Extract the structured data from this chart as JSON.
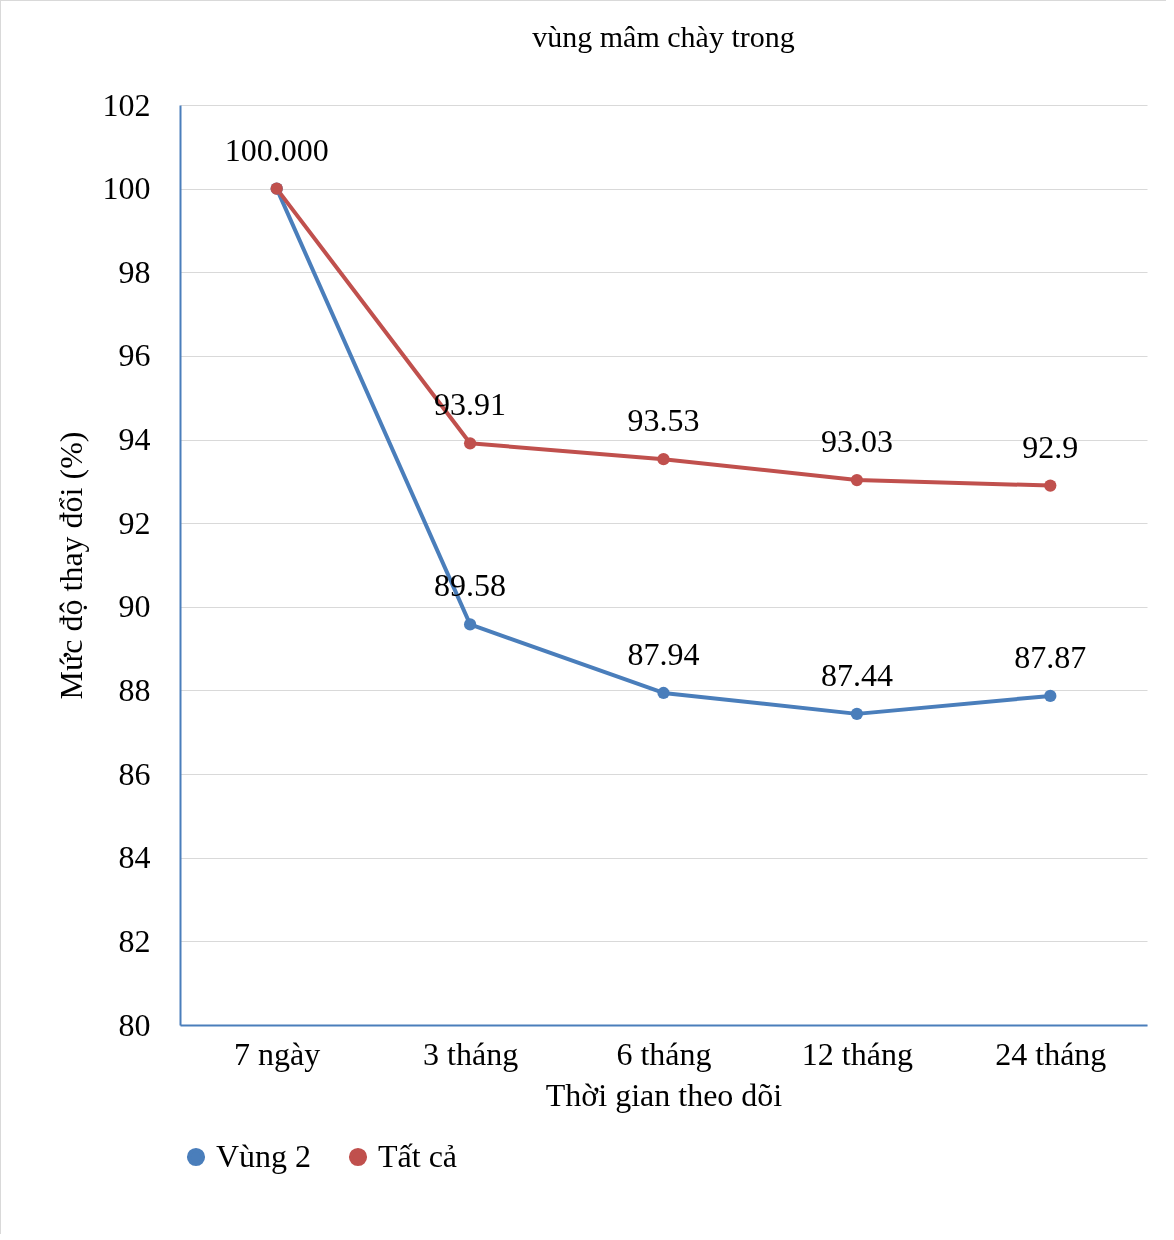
{
  "chart_data": {
    "type": "line",
    "title": "vùng mâm chày trong",
    "xlabel": "Thời gian theo dõi",
    "ylabel": "Mức độ thay đổi (%)",
    "categories": [
      "7 ngày",
      "3 tháng",
      "6 tháng",
      "12 tháng",
      "24 tháng"
    ],
    "series": [
      {
        "name": "Vùng 2",
        "color": "#4a7ebb",
        "values": [
          100,
          89.58,
          87.94,
          87.44,
          87.87
        ],
        "value_labels": [
          null,
          "89.58",
          "87.94",
          "87.44",
          "87.87"
        ]
      },
      {
        "name": "Tất cả",
        "color": "#c0504d",
        "values": [
          100,
          93.91,
          93.53,
          93.03,
          92.9
        ],
        "value_labels": [
          "100.000",
          "93.91",
          "93.53",
          "93.03",
          "92.9"
        ]
      }
    ],
    "ylim": [
      80,
      102
    ],
    "yticks": [
      80,
      82,
      84,
      86,
      88,
      90,
      92,
      94,
      96,
      98,
      100,
      102
    ],
    "grid": "y",
    "legend": "bottom",
    "marker": "circle",
    "line_style": "solid"
  }
}
